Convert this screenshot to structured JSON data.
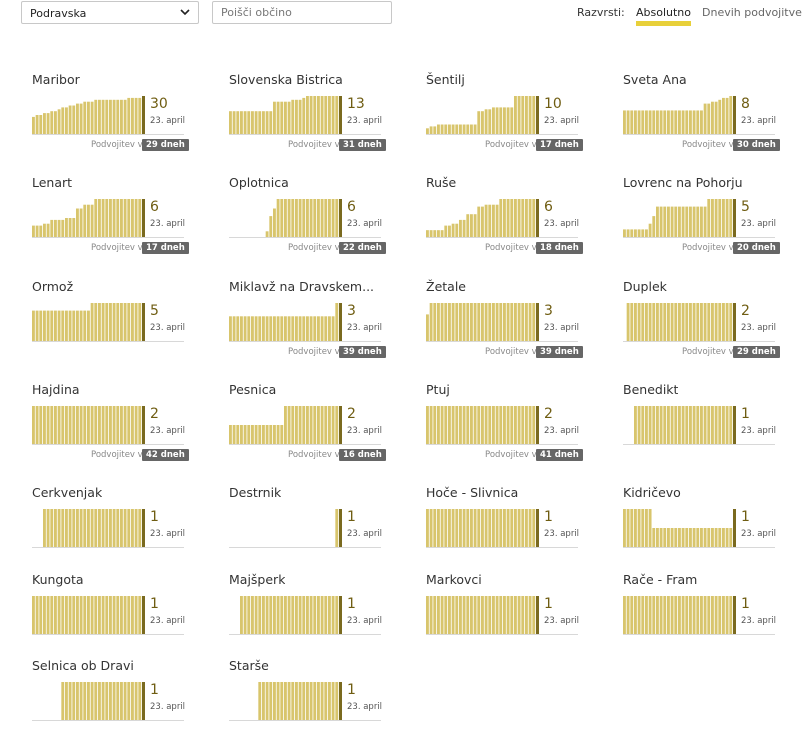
{
  "toolbar": {
    "region": "Podravska",
    "search_placeholder": "Poišči občino",
    "sort_label": "Razvrsti:",
    "sort_absolute": "Absolutno",
    "sort_doubling": "Dnevih podvojitve"
  },
  "colors": {
    "bar": "#d8c56c",
    "bar_edge": "#7a6a1f",
    "accent": "#e8d03a",
    "badge": "#666666"
  },
  "icons": {
    "dropdown": "chevron-down-icon"
  },
  "municipalities": [
    {
      "name": "Maribor",
      "count": "30",
      "date": "23. april",
      "doubling_label": "Podvojitev v",
      "doubling": "29 dneh",
      "bars": [
        0.45,
        0.5,
        0.5,
        0.55,
        0.55,
        0.6,
        0.6,
        0.65,
        0.7,
        0.7,
        0.75,
        0.75,
        0.8,
        0.8,
        0.85,
        0.85,
        0.85,
        0.9,
        0.9,
        0.9,
        0.9,
        0.9,
        0.9,
        0.9,
        0.9,
        0.9,
        0.95,
        0.95,
        0.95,
        0.95
      ]
    },
    {
      "name": "Slovenska Bistrica",
      "count": "13",
      "date": "23. april",
      "doubling_label": "Podvojitev v",
      "doubling": "31 dneh",
      "bars": [
        0.6,
        0.6,
        0.6,
        0.6,
        0.6,
        0.6,
        0.6,
        0.6,
        0.6,
        0.6,
        0.6,
        0.6,
        0.85,
        0.85,
        0.85,
        0.85,
        0.85,
        0.9,
        0.9,
        0.9,
        0.95,
        1,
        1,
        1,
        1,
        1,
        1,
        1,
        1,
        1
      ]
    },
    {
      "name": "Šentilj",
      "count": "10",
      "date": "23. april",
      "doubling_label": "Podvojitev v",
      "doubling": "17 dneh",
      "bars": [
        0.15,
        0.2,
        0.2,
        0.25,
        0.25,
        0.25,
        0.25,
        0.25,
        0.25,
        0.25,
        0.25,
        0.25,
        0.25,
        0.25,
        0.6,
        0.6,
        0.65,
        0.65,
        0.7,
        0.7,
        0.7,
        0.7,
        0.7,
        0.7,
        1,
        1,
        1,
        1,
        1,
        1
      ]
    },
    {
      "name": "Sveta Ana",
      "count": "8",
      "date": "23. april",
      "doubling_label": "Podvojitev v",
      "doubling": "30 dneh",
      "bars": [
        0.62,
        0.62,
        0.62,
        0.62,
        0.62,
        0.62,
        0.62,
        0.62,
        0.62,
        0.62,
        0.62,
        0.62,
        0.62,
        0.62,
        0.62,
        0.62,
        0.62,
        0.62,
        0.62,
        0.62,
        0.62,
        0.62,
        0.8,
        0.8,
        0.85,
        0.85,
        0.9,
        0.95,
        0.95,
        1
      ]
    },
    {
      "name": "Lenart",
      "count": "6",
      "date": "23. april",
      "doubling_label": "Podvojitev v",
      "doubling": "17 dneh",
      "bars": [
        0.3,
        0.3,
        0.3,
        0.35,
        0.35,
        0.45,
        0.45,
        0.45,
        0.45,
        0.5,
        0.5,
        0.5,
        0.75,
        0.75,
        0.85,
        0.85,
        0.85,
        1,
        1,
        1,
        1,
        1,
        1,
        1,
        1,
        1,
        1,
        1,
        1,
        1
      ]
    },
    {
      "name": "Oplotnica",
      "count": "6",
      "date": "23. april",
      "doubling_label": "Podvojitev v",
      "doubling": "22 dneh",
      "bars": [
        0,
        0,
        0,
        0,
        0,
        0,
        0,
        0,
        0,
        0,
        0.15,
        0.55,
        0.75,
        1,
        1,
        1,
        1,
        1,
        1,
        1,
        1,
        1,
        1,
        1,
        1,
        1,
        1,
        1,
        1,
        1
      ]
    },
    {
      "name": "Ruše",
      "count": "6",
      "date": "23. april",
      "doubling_label": "Podvojitev v",
      "doubling": "18 dneh",
      "bars": [
        0.18,
        0.18,
        0.18,
        0.18,
        0.18,
        0.3,
        0.3,
        0.35,
        0.35,
        0.45,
        0.45,
        0.6,
        0.6,
        0.6,
        0.8,
        0.8,
        0.85,
        0.85,
        0.85,
        0.85,
        1,
        1,
        1,
        1,
        1,
        1,
        1,
        1,
        1,
        1
      ]
    },
    {
      "name": "Lovrenc na Pohorju",
      "count": "5",
      "date": "23. april",
      "doubling_label": "Podvojitev v",
      "doubling": "20 dneh",
      "bars": [
        0.2,
        0.2,
        0.2,
        0.2,
        0.2,
        0.2,
        0.2,
        0.35,
        0.55,
        0.8,
        0.8,
        0.8,
        0.8,
        0.8,
        0.8,
        0.8,
        0.8,
        0.8,
        0.8,
        0.8,
        0.8,
        0.8,
        0.8,
        1,
        1,
        1,
        1,
        1,
        1,
        1
      ]
    },
    {
      "name": "Ormož",
      "count": "5",
      "date": "23. april",
      "doubling_label": "",
      "doubling": "",
      "bars": [
        0.8,
        0.8,
        0.8,
        0.8,
        0.8,
        0.8,
        0.8,
        0.8,
        0.8,
        0.8,
        0.8,
        0.8,
        0.8,
        0.8,
        0.8,
        0.8,
        1,
        1,
        1,
        1,
        1,
        1,
        1,
        1,
        1,
        1,
        1,
        1,
        1,
        1
      ]
    },
    {
      "name": "Miklavž na Dravskem...",
      "count": "3",
      "date": "23. april",
      "doubling_label": "Podvojitev v",
      "doubling": "39 dneh",
      "bars": [
        0.65,
        0.65,
        0.65,
        0.65,
        0.65,
        0.65,
        0.65,
        0.65,
        0.65,
        0.65,
        0.65,
        0.65,
        0.65,
        0.65,
        0.65,
        0.65,
        0.65,
        0.65,
        0.65,
        0.65,
        0.65,
        0.65,
        0.65,
        0.65,
        0.65,
        0.65,
        0.65,
        0.65,
        0.65,
        1
      ]
    },
    {
      "name": "Žetale",
      "count": "3",
      "date": "23. april",
      "doubling_label": "Podvojitev v",
      "doubling": "39 dneh",
      "bars": [
        0.7,
        1,
        1,
        1,
        1,
        1,
        1,
        1,
        1,
        1,
        1,
        1,
        1,
        1,
        1,
        1,
        1,
        1,
        1,
        1,
        1,
        1,
        1,
        1,
        1,
        1,
        1,
        1,
        1,
        1
      ]
    },
    {
      "name": "Duplek",
      "count": "2",
      "date": "23. april",
      "doubling_label": "Podvojitev v",
      "doubling": "29 dneh",
      "bars": [
        0,
        1,
        1,
        1,
        1,
        1,
        1,
        1,
        1,
        1,
        1,
        1,
        1,
        1,
        1,
        1,
        1,
        1,
        1,
        1,
        1,
        1,
        1,
        1,
        1,
        1,
        1,
        1,
        1,
        1
      ]
    },
    {
      "name": "Hajdina",
      "count": "2",
      "date": "23. april",
      "doubling_label": "Podvojitev v",
      "doubling": "42 dneh",
      "bars": [
        1,
        1,
        1,
        1,
        1,
        1,
        1,
        1,
        1,
        1,
        1,
        1,
        1,
        1,
        1,
        1,
        1,
        1,
        1,
        1,
        1,
        1,
        1,
        1,
        1,
        1,
        1,
        1,
        1,
        1
      ]
    },
    {
      "name": "Pesnica",
      "count": "2",
      "date": "23. april",
      "doubling_label": "Podvojitev v",
      "doubling": "16 dneh",
      "bars": [
        0.5,
        0.5,
        0.5,
        0.5,
        0.5,
        0.5,
        0.5,
        0.5,
        0.5,
        0.5,
        0.5,
        0.5,
        0.5,
        0.5,
        0.5,
        1,
        1,
        1,
        1,
        1,
        1,
        1,
        1,
        1,
        1,
        1,
        1,
        1,
        1,
        1
      ]
    },
    {
      "name": "Ptuj",
      "count": "2",
      "date": "23. april",
      "doubling_label": "Podvojitev v",
      "doubling": "41 dneh",
      "bars": [
        1,
        1,
        1,
        1,
        1,
        1,
        1,
        1,
        1,
        1,
        1,
        1,
        1,
        1,
        1,
        1,
        1,
        1,
        1,
        1,
        1,
        1,
        1,
        1,
        1,
        1,
        1,
        1,
        1,
        1
      ]
    },
    {
      "name": "Benedikt",
      "count": "1",
      "date": "23. april",
      "doubling_label": "",
      "doubling": "",
      "bars": [
        0,
        0,
        0,
        1,
        1,
        1,
        1,
        1,
        1,
        1,
        1,
        1,
        1,
        1,
        1,
        1,
        1,
        1,
        1,
        1,
        1,
        1,
        1,
        1,
        1,
        1,
        1,
        1,
        1,
        1
      ]
    },
    {
      "name": "Cerkvenjak",
      "count": "1",
      "date": "23. april",
      "doubling_label": "",
      "doubling": "",
      "bars": [
        0,
        0,
        0,
        1,
        1,
        1,
        1,
        1,
        1,
        1,
        1,
        1,
        1,
        1,
        1,
        1,
        1,
        1,
        1,
        1,
        1,
        1,
        1,
        1,
        1,
        1,
        1,
        1,
        1,
        1
      ]
    },
    {
      "name": "Destrnik",
      "count": "1",
      "date": "23. april",
      "doubling_label": "",
      "doubling": "",
      "bars": [
        0,
        0,
        0,
        0,
        0,
        0,
        0,
        0,
        0,
        0,
        0,
        0,
        0,
        0,
        0,
        0,
        0,
        0,
        0,
        0,
        0,
        0,
        0,
        0,
        0,
        0,
        0,
        0,
        0,
        1
      ]
    },
    {
      "name": "Hoče - Slivnica",
      "count": "1",
      "date": "23. april",
      "doubling_label": "",
      "doubling": "",
      "bars": [
        1,
        1,
        1,
        1,
        1,
        1,
        1,
        1,
        1,
        1,
        1,
        1,
        1,
        1,
        1,
        1,
        1,
        1,
        1,
        1,
        1,
        1,
        1,
        1,
        1,
        1,
        1,
        1,
        1,
        1
      ]
    },
    {
      "name": "Kidričevo",
      "count": "1",
      "date": "23. april",
      "doubling_label": "",
      "doubling": "",
      "bars": [
        1,
        1,
        1,
        1,
        1,
        1,
        1,
        1,
        0.5,
        0.5,
        0.5,
        0.5,
        0.5,
        0.5,
        0.5,
        0.5,
        0.5,
        0.5,
        0.5,
        0.5,
        0.5,
        0.5,
        0.5,
        0.5,
        0.5,
        0.5,
        0.5,
        0.5,
        0.5,
        0.5
      ]
    },
    {
      "name": "Kungota",
      "count": "1",
      "date": "23. april",
      "doubling_label": "",
      "doubling": "",
      "bars": [
        1,
        1,
        1,
        1,
        1,
        1,
        1,
        1,
        1,
        1,
        1,
        1,
        1,
        1,
        1,
        1,
        1,
        1,
        1,
        1,
        1,
        1,
        1,
        1,
        1,
        1,
        1,
        1,
        1,
        1
      ]
    },
    {
      "name": "Majšperk",
      "count": "1",
      "date": "23. april",
      "doubling_label": "",
      "doubling": "",
      "bars": [
        0,
        0,
        0,
        1,
        1,
        1,
        1,
        1,
        1,
        1,
        1,
        1,
        1,
        1,
        1,
        1,
        1,
        1,
        1,
        1,
        1,
        1,
        1,
        1,
        1,
        1,
        1,
        1,
        1,
        1
      ]
    },
    {
      "name": "Markovci",
      "count": "1",
      "date": "23. april",
      "doubling_label": "",
      "doubling": "",
      "bars": [
        1,
        1,
        1,
        1,
        1,
        1,
        1,
        1,
        1,
        1,
        1,
        1,
        1,
        1,
        1,
        1,
        1,
        1,
        1,
        1,
        1,
        1,
        1,
        1,
        1,
        1,
        1,
        1,
        1,
        1
      ]
    },
    {
      "name": "Rače - Fram",
      "count": "1",
      "date": "23. april",
      "doubling_label": "",
      "doubling": "",
      "bars": [
        1,
        1,
        1,
        1,
        1,
        1,
        1,
        1,
        1,
        1,
        1,
        1,
        1,
        1,
        1,
        1,
        1,
        1,
        1,
        1,
        1,
        1,
        1,
        1,
        1,
        1,
        1,
        1,
        1,
        1
      ]
    },
    {
      "name": "Selnica ob Dravi",
      "count": "1",
      "date": "23. april",
      "doubling_label": "",
      "doubling": "",
      "bars": [
        0,
        0,
        0,
        0,
        0,
        0,
        0,
        0,
        1,
        1,
        1,
        1,
        1,
        1,
        1,
        1,
        1,
        1,
        1,
        1,
        1,
        1,
        1,
        1,
        1,
        1,
        1,
        1,
        1,
        1
      ]
    },
    {
      "name": "Starše",
      "count": "1",
      "date": "23. april",
      "doubling_label": "",
      "doubling": "",
      "bars": [
        0,
        0,
        0,
        0,
        0,
        0,
        0,
        0,
        1,
        1,
        1,
        1,
        1,
        1,
        1,
        1,
        1,
        1,
        1,
        1,
        1,
        1,
        1,
        1,
        1,
        1,
        1,
        1,
        1,
        1
      ]
    }
  ]
}
